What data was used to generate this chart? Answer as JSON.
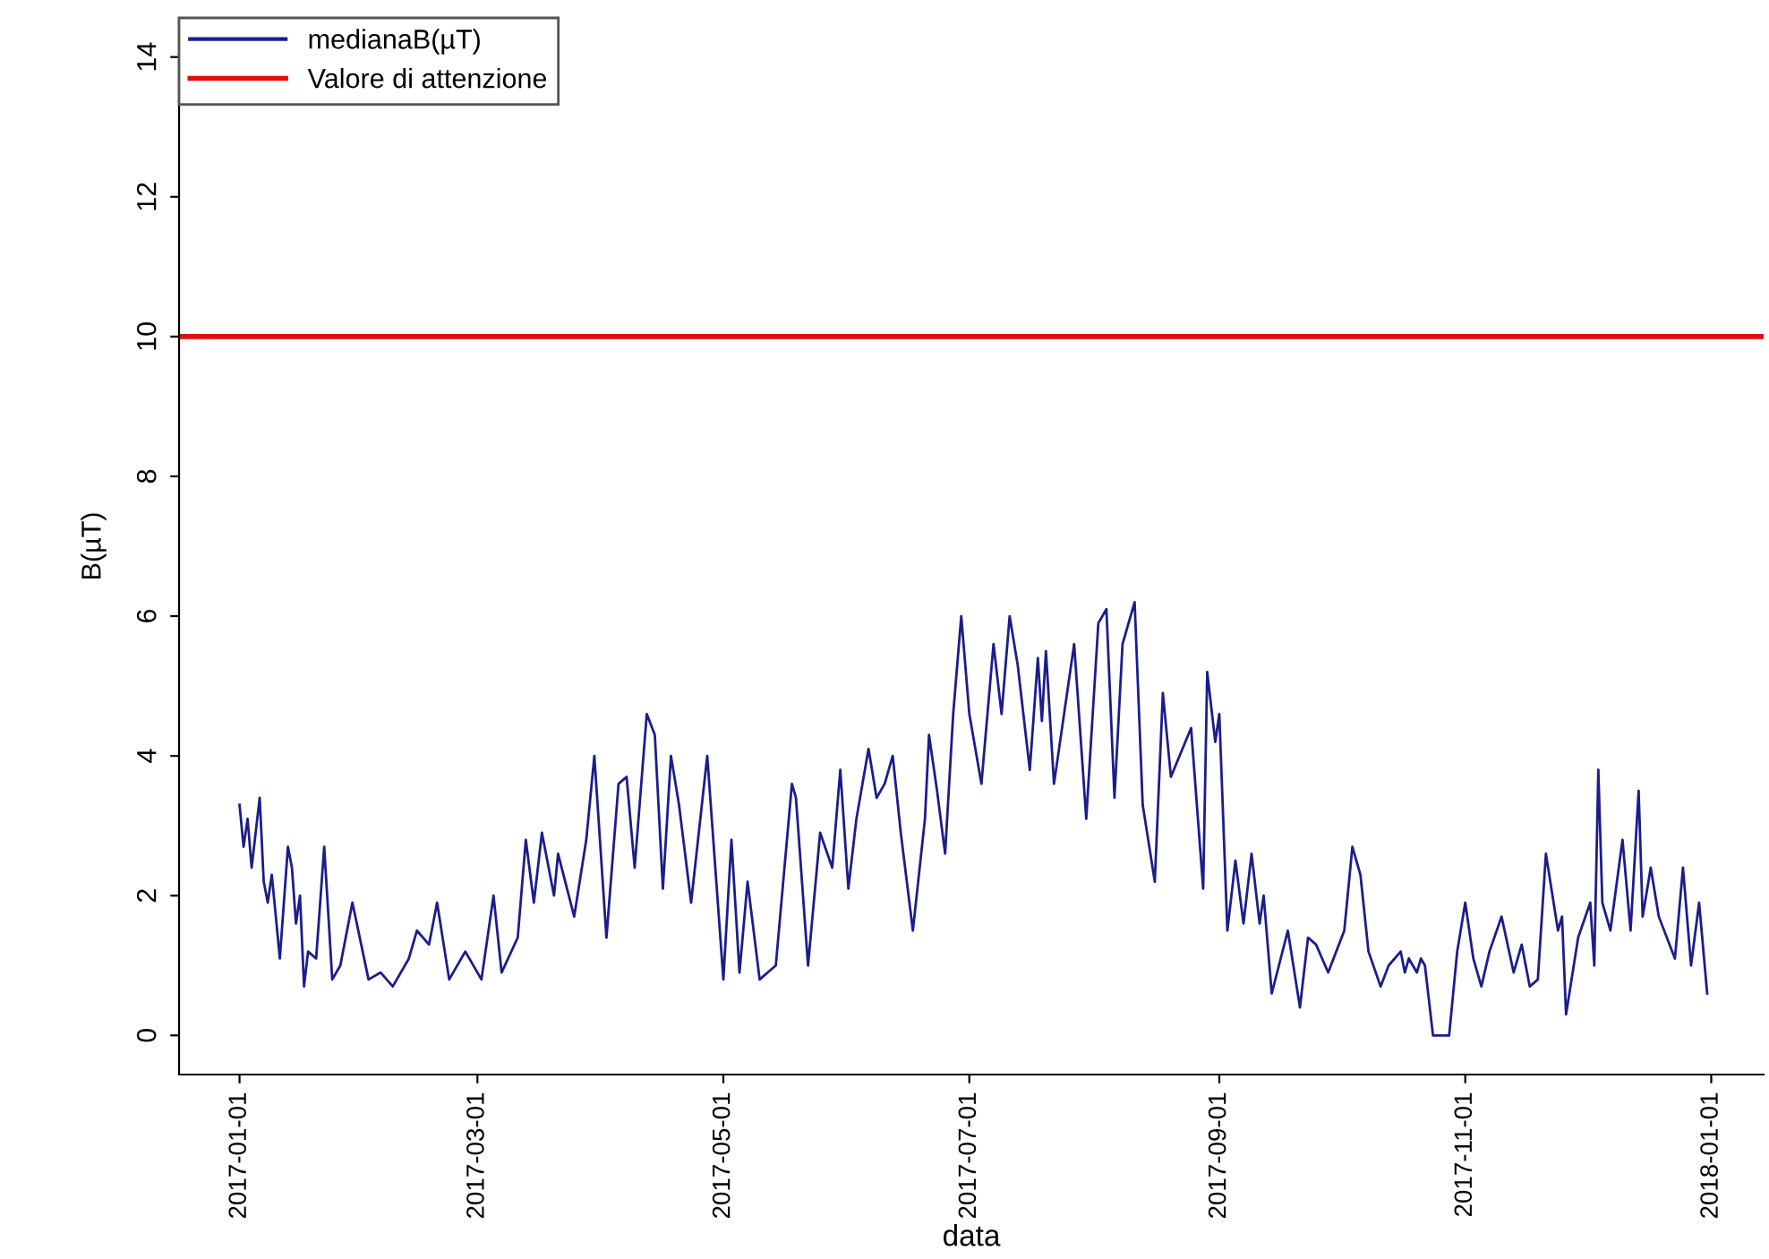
{
  "chart_data": {
    "type": "line",
    "xlabel": "data",
    "ylabel": "B(µT)",
    "xlim": [
      "2016-12-17",
      "2018-01-14"
    ],
    "ylim": [
      -0.56,
      14.56
    ],
    "xticks": [
      {
        "value": "2017-01-01",
        "label": "2017-01-01"
      },
      {
        "value": "2017-03-01",
        "label": "2017-03-01"
      },
      {
        "value": "2017-05-01",
        "label": "2017-05-01"
      },
      {
        "value": "2017-07-01",
        "label": "2017-07-01"
      },
      {
        "value": "2017-09-01",
        "label": "2017-09-01"
      },
      {
        "value": "2017-11-01",
        "label": "2017-11-01"
      },
      {
        "value": "2018-01-01",
        "label": "2018-01-01"
      }
    ],
    "yticks": [
      0,
      2,
      4,
      6,
      8,
      10,
      12,
      14
    ],
    "grid": false,
    "legend": "top left",
    "line_style": "solid",
    "marker": "none",
    "x": [
      "2017-01-01",
      "2017-01-02",
      "2017-01-03",
      "2017-01-04",
      "2017-01-06",
      "2017-01-07",
      "2017-01-08",
      "2017-01-09",
      "2017-01-11",
      "2017-01-13",
      "2017-01-14",
      "2017-01-15",
      "2017-01-16",
      "2017-01-17",
      "2017-01-18",
      "2017-01-20",
      "2017-01-22",
      "2017-01-24",
      "2017-01-26",
      "2017-01-29",
      "2017-02-02",
      "2017-02-05",
      "2017-02-08",
      "2017-02-12",
      "2017-02-14",
      "2017-02-17",
      "2017-02-19",
      "2017-02-22",
      "2017-02-26",
      "2017-03-02",
      "2017-03-05",
      "2017-03-07",
      "2017-03-11",
      "2017-03-13",
      "2017-03-15",
      "2017-03-17",
      "2017-03-20",
      "2017-03-21",
      "2017-03-25",
      "2017-03-28",
      "2017-03-30",
      "2017-04-02",
      "2017-04-05",
      "2017-04-07",
      "2017-04-09",
      "2017-04-12",
      "2017-04-14",
      "2017-04-16",
      "2017-04-18",
      "2017-04-20",
      "2017-04-23",
      "2017-04-27",
      "2017-05-01",
      "2017-05-03",
      "2017-05-05",
      "2017-05-07",
      "2017-05-10",
      "2017-05-12",
      "2017-05-14",
      "2017-05-18",
      "2017-05-19",
      "2017-05-22",
      "2017-05-25",
      "2017-05-28",
      "2017-05-30",
      "2017-06-01",
      "2017-06-03",
      "2017-06-06",
      "2017-06-08",
      "2017-06-10",
      "2017-06-12",
      "2017-06-14",
      "2017-06-17",
      "2017-06-20",
      "2017-06-21",
      "2017-06-23",
      "2017-06-25",
      "2017-06-27",
      "2017-06-29",
      "2017-07-01",
      "2017-07-04",
      "2017-07-07",
      "2017-07-09",
      "2017-07-11",
      "2017-07-13",
      "2017-07-16",
      "2017-07-18",
      "2017-07-19",
      "2017-07-20",
      "2017-07-22",
      "2017-07-27",
      "2017-07-30",
      "2017-08-02",
      "2017-08-04",
      "2017-08-06",
      "2017-08-08",
      "2017-08-11",
      "2017-08-13",
      "2017-08-16",
      "2017-08-18",
      "2017-08-20",
      "2017-08-25",
      "2017-08-28",
      "2017-08-29",
      "2017-08-31",
      "2017-09-01",
      "2017-09-03",
      "2017-09-05",
      "2017-09-07",
      "2017-09-09",
      "2017-09-11",
      "2017-09-12",
      "2017-09-14",
      "2017-09-18",
      "2017-09-21",
      "2017-09-23",
      "2017-09-25",
      "2017-09-28",
      "2017-10-02",
      "2017-10-04",
      "2017-10-06",
      "2017-10-08",
      "2017-10-11",
      "2017-10-13",
      "2017-10-16",
      "2017-10-17",
      "2017-10-18",
      "2017-10-20",
      "2017-10-21",
      "2017-10-22",
      "2017-10-24",
      "2017-10-28",
      "2017-10-30",
      "2017-11-01",
      "2017-11-03",
      "2017-11-05",
      "2017-11-07",
      "2017-11-10",
      "2017-11-13",
      "2017-11-15",
      "2017-11-17",
      "2017-11-19",
      "2017-11-21",
      "2017-11-24",
      "2017-11-25",
      "2017-11-26",
      "2017-11-29",
      "2017-12-02",
      "2017-12-03",
      "2017-12-04",
      "2017-12-05",
      "2017-12-07",
      "2017-12-10",
      "2017-12-12",
      "2017-12-14",
      "2017-12-15",
      "2017-12-17",
      "2017-12-19",
      "2017-12-23",
      "2017-12-25",
      "2017-12-27",
      "2017-12-29",
      "2017-12-31"
    ],
    "series": [
      {
        "name": "medianaB(µT)",
        "color": "#1c1c8c",
        "values": [
          3.3,
          2.7,
          3.1,
          2.4,
          3.4,
          2.2,
          1.9,
          2.3,
          1.1,
          2.7,
          2.4,
          1.6,
          2.0,
          0.7,
          1.2,
          1.1,
          2.7,
          0.8,
          1.0,
          1.9,
          0.8,
          0.9,
          0.7,
          1.1,
          1.5,
          1.3,
          1.9,
          0.8,
          1.2,
          0.8,
          2.0,
          0.9,
          1.4,
          2.8,
          1.9,
          2.9,
          2.0,
          2.6,
          1.7,
          2.8,
          4.0,
          1.4,
          3.6,
          3.7,
          2.4,
          4.6,
          4.3,
          2.1,
          4.0,
          3.3,
          1.9,
          4.0,
          0.8,
          2.8,
          0.9,
          2.2,
          0.8,
          0.9,
          1.0,
          3.6,
          3.4,
          1.0,
          2.9,
          2.4,
          3.8,
          2.1,
          3.1,
          4.1,
          3.4,
          3.6,
          4.0,
          2.9,
          1.5,
          3.1,
          4.3,
          3.5,
          2.6,
          4.6,
          6.0,
          4.6,
          3.6,
          5.6,
          4.6,
          6.0,
          5.3,
          3.8,
          5.4,
          4.5,
          5.5,
          3.6,
          5.6,
          3.1,
          5.9,
          6.1,
          3.4,
          5.6,
          6.2,
          3.3,
          2.2,
          4.9,
          3.7,
          4.4,
          2.1,
          5.2,
          4.2,
          4.6,
          1.5,
          2.5,
          1.6,
          2.6,
          1.6,
          2.0,
          0.6,
          1.5,
          0.4,
          1.4,
          1.3,
          0.9,
          1.5,
          2.7,
          2.3,
          1.2,
          0.7,
          1.0,
          1.2,
          0.9,
          1.1,
          0.9,
          1.1,
          1.0,
          0.0,
          0.0,
          1.2,
          1.9,
          1.1,
          0.7,
          1.2,
          1.7,
          0.9,
          1.3,
          0.7,
          0.8,
          2.6,
          1.5,
          1.7,
          0.3,
          1.4,
          1.9,
          1.0,
          3.8,
          1.9,
          1.5,
          2.8,
          1.5,
          3.5,
          1.7,
          2.4,
          1.7,
          1.1,
          2.4,
          1.0,
          1.9,
          0.6
        ]
      }
    ],
    "ref_lines": [
      {
        "axis": "y",
        "value": 10,
        "label": "Valore di attenzione",
        "color": "#e01010",
        "line_style": "solid"
      }
    ]
  }
}
